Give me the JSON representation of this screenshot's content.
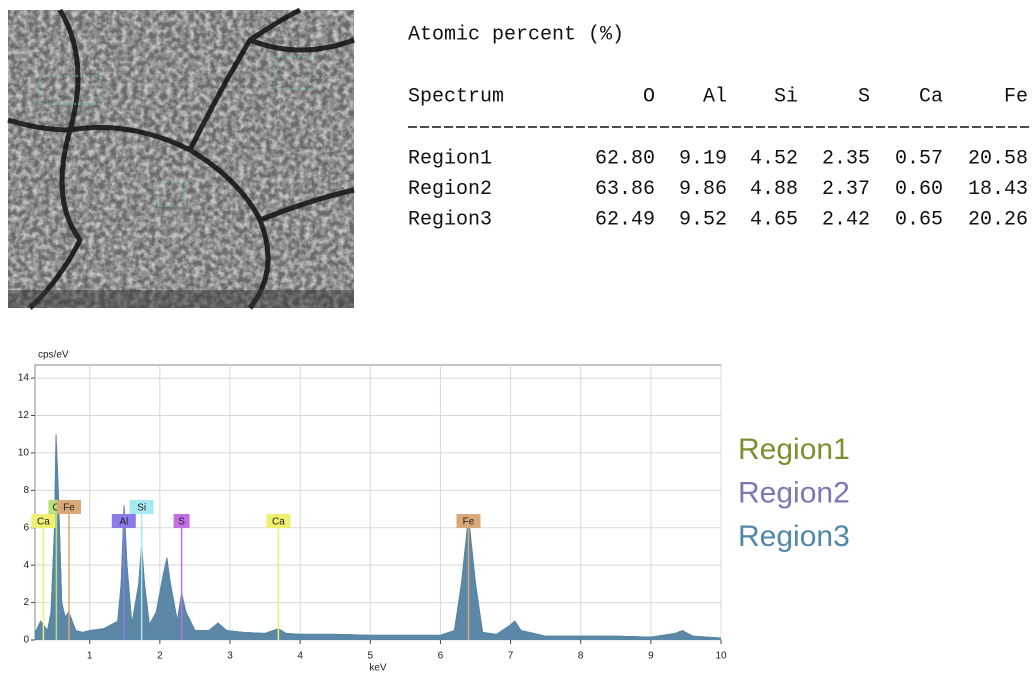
{
  "table": {
    "title": "Atomic percent (%)",
    "columns": [
      "Spectrum",
      "O",
      "Al",
      "Si",
      "S",
      "Ca",
      "Fe"
    ],
    "rows": [
      [
        "Region1",
        "62.80",
        "9.19",
        "4.52",
        "2.35",
        "0.57",
        "20.58"
      ],
      [
        "Region2",
        "63.86",
        "9.86",
        "4.88",
        "2.37",
        "0.60",
        "18.43"
      ],
      [
        "Region3",
        "62.49",
        "9.52",
        "4.65",
        "2.42",
        "0.65",
        "20.26"
      ]
    ]
  },
  "chart_data": {
    "type": "area",
    "y_axis_label": "cps/eV",
    "x_axis_label": "keV",
    "x": [
      0.2,
      0.3,
      0.4,
      0.45,
      0.5,
      0.52,
      0.55,
      0.6,
      0.65,
      0.7,
      0.75,
      0.8,
      0.9,
      1.0,
      1.2,
      1.4,
      1.45,
      1.49,
      1.53,
      1.6,
      1.7,
      1.74,
      1.78,
      1.85,
      1.95,
      2.05,
      2.1,
      2.15,
      2.25,
      2.31,
      2.37,
      2.5,
      2.7,
      2.83,
      2.95,
      3.2,
      3.5,
      3.69,
      3.8,
      4.0,
      4.5,
      5.0,
      5.5,
      6.0,
      6.2,
      6.3,
      6.4,
      6.5,
      6.6,
      6.8,
      7.0,
      7.06,
      7.15,
      7.5,
      8.0,
      8.5,
      9.0,
      9.35,
      9.45,
      9.6,
      10.0
    ],
    "series": [
      {
        "name": "Region1",
        "color": "#7d8f2f",
        "values": [
          0.2,
          1.0,
          0.5,
          1.5,
          5.8,
          10.2,
          7.8,
          2,
          1.2,
          1.5,
          1.0,
          0.5,
          0.4,
          0.5,
          0.6,
          1.0,
          3,
          6.8,
          4,
          0.8,
          3,
          4.9,
          3,
          0.8,
          1.5,
          3.4,
          4.2,
          3,
          1.0,
          2.4,
          1.5,
          0.5,
          0.5,
          0.9,
          0.5,
          0.4,
          0.35,
          0.6,
          0.35,
          0.3,
          0.3,
          0.25,
          0.25,
          0.25,
          0.5,
          3,
          6.6,
          3,
          0.4,
          0.3,
          0.8,
          1.0,
          0.5,
          0.2,
          0.2,
          0.2,
          0.15,
          0.35,
          0.5,
          0.2,
          0.1
        ]
      },
      {
        "name": "Region2",
        "color": "#7b78b4",
        "values": [
          0.2,
          1.0,
          0.5,
          1.5,
          6.2,
          11.0,
          8.2,
          2,
          1.2,
          1.5,
          1.0,
          0.5,
          0.4,
          0.5,
          0.6,
          1.0,
          3,
          7.2,
          4,
          0.8,
          3,
          5.1,
          3,
          0.8,
          1.5,
          3.5,
          4.4,
          3,
          1.0,
          2.5,
          1.5,
          0.5,
          0.5,
          0.9,
          0.5,
          0.4,
          0.35,
          0.6,
          0.35,
          0.3,
          0.3,
          0.25,
          0.25,
          0.25,
          0.5,
          2.9,
          6.3,
          2.9,
          0.4,
          0.3,
          0.8,
          1.0,
          0.5,
          0.2,
          0.2,
          0.2,
          0.15,
          0.35,
          0.5,
          0.2,
          0.1
        ]
      },
      {
        "name": "Region3",
        "color": "#4f88a8",
        "values": [
          0.2,
          1.0,
          0.5,
          1.5,
          6,
          10.5,
          8,
          2,
          1.2,
          1.5,
          1.0,
          0.5,
          0.4,
          0.5,
          0.6,
          1.0,
          3,
          7,
          4,
          0.8,
          3,
          5,
          3,
          0.8,
          1.5,
          3.5,
          4.3,
          3,
          1.0,
          2.5,
          1.5,
          0.5,
          0.5,
          0.9,
          0.5,
          0.4,
          0.35,
          0.6,
          0.35,
          0.3,
          0.3,
          0.25,
          0.25,
          0.25,
          0.5,
          3,
          6.5,
          3,
          0.4,
          0.3,
          0.8,
          1.0,
          0.5,
          0.2,
          0.2,
          0.2,
          0.15,
          0.35,
          0.5,
          0.2,
          0.1
        ]
      }
    ],
    "peak_labels": [
      {
        "label": "Ca",
        "x": 0.34,
        "color": "#f0f070"
      },
      {
        "label": "O",
        "x": 0.525,
        "color": "#b8e07c"
      },
      {
        "label": "Fe",
        "x": 0.705,
        "color": "#d9a878"
      },
      {
        "label": "Al",
        "x": 1.486,
        "color": "#8a7be8"
      },
      {
        "label": "Si",
        "x": 1.74,
        "color": "#a8e8f0"
      },
      {
        "label": "S",
        "x": 2.31,
        "color": "#c070e0"
      },
      {
        "label": "Ca",
        "x": 3.69,
        "color": "#f0f070"
      },
      {
        "label": "Fe",
        "x": 6.4,
        "color": "#d9a878"
      }
    ],
    "xlim": [
      0.22,
      10
    ],
    "ylim": [
      0,
      14.7
    ],
    "xticks": [
      1,
      2,
      3,
      4,
      5,
      6,
      7,
      8,
      9,
      10
    ],
    "yticks": [
      0,
      2,
      4,
      6,
      8,
      10,
      12,
      14
    ],
    "grid": true
  }
}
